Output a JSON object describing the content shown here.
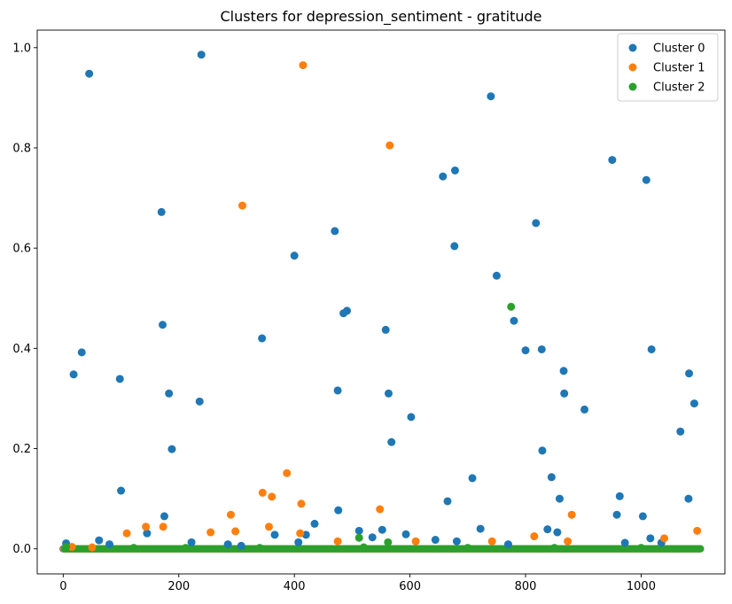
{
  "chart_data": {
    "type": "scatter",
    "title": "Clusters for depression_sentiment - gratitude",
    "xlabel": "",
    "ylabel": "",
    "xlim": [
      -45,
      1145
    ],
    "ylim": [
      -0.05,
      1.035
    ],
    "xticks": [
      0,
      200,
      400,
      600,
      800,
      1000
    ],
    "yticks": [
      0.0,
      0.2,
      0.4,
      0.6,
      0.8,
      1.0
    ],
    "xtick_labels": [
      "0",
      "200",
      "400",
      "600",
      "800",
      "1000"
    ],
    "ytick_labels": [
      "0.0",
      "0.2",
      "0.4",
      "0.6",
      "0.8",
      "1.0"
    ],
    "grid": false,
    "legend_position": "top-right",
    "series": [
      {
        "name": "Cluster 0",
        "color": "#1f77b4",
        "points": [
          [
            5,
            0.011
          ],
          [
            18,
            0.348
          ],
          [
            32,
            0.392
          ],
          [
            45,
            0.948
          ],
          [
            62,
            0.017
          ],
          [
            80,
            0.009
          ],
          [
            98,
            0.339
          ],
          [
            100,
            0.116
          ],
          [
            145,
            0.031
          ],
          [
            170,
            0.672
          ],
          [
            172,
            0.447
          ],
          [
            175,
            0.065
          ],
          [
            183,
            0.31
          ],
          [
            188,
            0.199
          ],
          [
            222,
            0.013
          ],
          [
            236,
            0.294
          ],
          [
            239,
            0.986
          ],
          [
            285,
            0.009
          ],
          [
            308,
            0.006
          ],
          [
            344,
            0.42
          ],
          [
            366,
            0.028
          ],
          [
            400,
            0.585
          ],
          [
            407,
            0.013
          ],
          [
            420,
            0.028
          ],
          [
            435,
            0.05
          ],
          [
            470,
            0.634
          ],
          [
            475,
            0.316
          ],
          [
            476,
            0.077
          ],
          [
            485,
            0.47
          ],
          [
            491,
            0.475
          ],
          [
            512,
            0.036
          ],
          [
            535,
            0.023
          ],
          [
            552,
            0.038
          ],
          [
            558,
            0.437
          ],
          [
            563,
            0.31
          ],
          [
            568,
            0.213
          ],
          [
            593,
            0.029
          ],
          [
            602,
            0.263
          ],
          [
            644,
            0.018
          ],
          [
            657,
            0.743
          ],
          [
            665,
            0.095
          ],
          [
            677,
            0.604
          ],
          [
            678,
            0.755
          ],
          [
            681,
            0.015
          ],
          [
            708,
            0.141
          ],
          [
            722,
            0.04
          ],
          [
            740,
            0.903
          ],
          [
            750,
            0.545
          ],
          [
            770,
            0.009
          ],
          [
            780,
            0.455
          ],
          [
            800,
            0.396
          ],
          [
            818,
            0.65
          ],
          [
            828,
            0.398
          ],
          [
            829,
            0.196
          ],
          [
            838,
            0.039
          ],
          [
            845,
            0.143
          ],
          [
            855,
            0.033
          ],
          [
            859,
            0.1
          ],
          [
            866,
            0.355
          ],
          [
            867,
            0.31
          ],
          [
            902,
            0.278
          ],
          [
            950,
            0.776
          ],
          [
            958,
            0.068
          ],
          [
            963,
            0.105
          ],
          [
            972,
            0.012
          ],
          [
            1003,
            0.065
          ],
          [
            1009,
            0.736
          ],
          [
            1016,
            0.021
          ],
          [
            1018,
            0.398
          ],
          [
            1035,
            0.012
          ],
          [
            1068,
            0.234
          ],
          [
            1082,
            0.1
          ],
          [
            1083,
            0.35
          ],
          [
            1092,
            0.29
          ]
        ]
      },
      {
        "name": "Cluster 1",
        "color": "#ff7f0e",
        "points": [
          [
            15,
            0.004
          ],
          [
            50,
            0.003
          ],
          [
            110,
            0.031
          ],
          [
            143,
            0.044
          ],
          [
            173,
            0.044
          ],
          [
            255,
            0.033
          ],
          [
            290,
            0.068
          ],
          [
            298,
            0.035
          ],
          [
            310,
            0.685
          ],
          [
            345,
            0.112
          ],
          [
            356,
            0.044
          ],
          [
            361,
            0.104
          ],
          [
            387,
            0.151
          ],
          [
            410,
            0.031
          ],
          [
            412,
            0.09
          ],
          [
            415,
            0.965
          ],
          [
            475,
            0.015
          ],
          [
            548,
            0.079
          ],
          [
            565,
            0.805
          ],
          [
            610,
            0.015
          ],
          [
            742,
            0.015
          ],
          [
            815,
            0.025
          ],
          [
            873,
            0.015
          ],
          [
            880,
            0.068
          ],
          [
            1040,
            0.021
          ],
          [
            1097,
            0.036
          ]
        ]
      },
      {
        "name": "Cluster 2",
        "color": "#2ca02c",
        "points": [
          [
            5,
            0.004
          ],
          [
            122,
            0.002
          ],
          [
            212,
            0.002
          ],
          [
            340,
            0.002
          ],
          [
            512,
            0.022
          ],
          [
            520,
            0.003
          ],
          [
            562,
            0.013
          ],
          [
            700,
            0.002
          ],
          [
            775,
            0.483
          ],
          [
            850,
            0.002
          ],
          [
            1000,
            0.002
          ]
        ]
      }
    ],
    "baseline_band": {
      "x_range": [
        0,
        1100
      ],
      "y": 0.0,
      "note": "dense row of points at 0.0 for all clusters"
    }
  },
  "legend": {
    "items": [
      {
        "label": "Cluster 0",
        "color": "#1f77b4"
      },
      {
        "label": "Cluster 1",
        "color": "#ff7f0e"
      },
      {
        "label": "Cluster 2",
        "color": "#2ca02c"
      }
    ]
  }
}
